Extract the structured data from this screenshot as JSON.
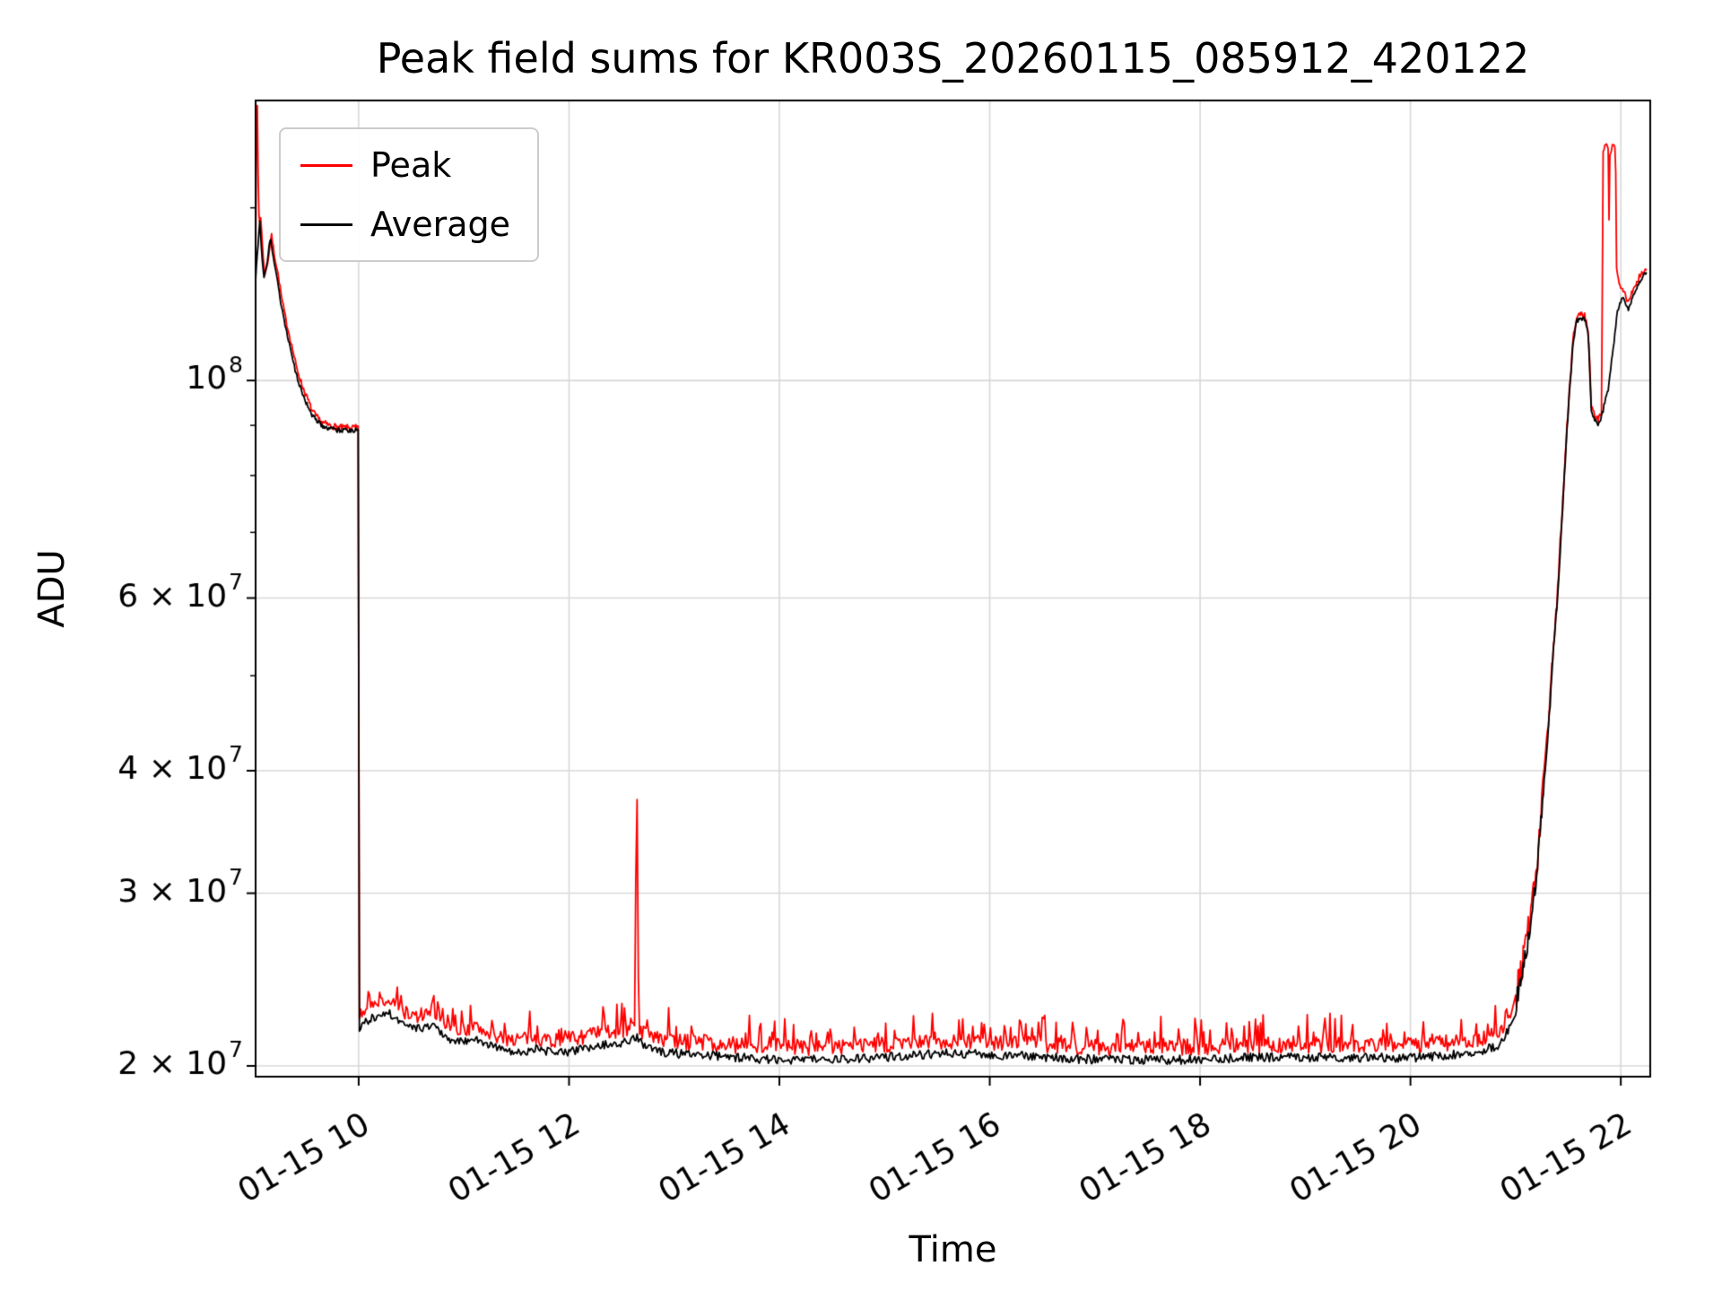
{
  "figure": {
    "title": "Peak field sums for KR003S_20260115_085912_420122"
  },
  "chart_data": {
    "type": "line",
    "title": "Peak field sums for KR003S_20260115_085912_420122",
    "xlabel": "Time",
    "ylabel": "ADU",
    "x_unit": "hour of 2026-01-15",
    "y_scale": "log",
    "x_range": [
      9.02,
      22.28
    ],
    "y_range": [
      19500000.0,
      193000000.0
    ],
    "grid": true,
    "grid_color": "#d9d9d9",
    "background": "#ffffff",
    "noise_seed": 7,
    "x_ticks": [
      {
        "v": 10,
        "label": "01-15 10"
      },
      {
        "v": 12,
        "label": "01-15 12"
      },
      {
        "v": 14,
        "label": "01-15 14"
      },
      {
        "v": 16,
        "label": "01-15 16"
      },
      {
        "v": 18,
        "label": "01-15 18"
      },
      {
        "v": 20,
        "label": "01-15 20"
      },
      {
        "v": 22,
        "label": "01-15 22"
      }
    ],
    "y_ticks": [
      {
        "v": 20000000.0,
        "base": "2 × 10",
        "exp": "7"
      },
      {
        "v": 30000000.0,
        "base": "3 × 10",
        "exp": "7"
      },
      {
        "v": 40000000.0,
        "base": "4 × 10",
        "exp": "7"
      },
      {
        "v": 60000000.0,
        "base": "6 × 10",
        "exp": "7"
      },
      {
        "v": 100000000.0,
        "base": "10",
        "exp": "8"
      }
    ],
    "y_minor_ticks": [
      50000000.0,
      70000000.0,
      80000000.0,
      90000000.0,
      150000000.0
    ],
    "legend": {
      "position": "upper-left",
      "entries": [
        {
          "label": "Peak",
          "color": "#ff0000"
        },
        {
          "label": "Average",
          "color": "#000000"
        }
      ]
    },
    "series": [
      {
        "name": "Peak",
        "color": "#ff0000",
        "linewidth": 1.8,
        "segments": [
          {
            "points": [
              [
                9.02,
                130000000.0
              ],
              [
                9.025,
                170000000.0
              ],
              [
                9.03,
                193000000.0
              ],
              [
                9.04,
                188000000.0
              ],
              [
                9.045,
                155000000.0
              ],
              [
                9.055,
                144000000.0
              ],
              [
                9.07,
                147000000.0
              ],
              [
                9.09,
                134000000.0
              ],
              [
                9.11,
                128000000.0
              ],
              [
                9.14,
                133000000.0
              ],
              [
                9.17,
                141000000.0
              ],
              [
                9.2,
                134000000.0
              ],
              [
                9.23,
                129000000.0
              ],
              [
                9.27,
                121000000.0
              ],
              [
                9.31,
                115000000.0
              ],
              [
                9.36,
                109000000.0
              ],
              [
                9.41,
                103000000.0
              ],
              [
                9.46,
                99000000.0
              ],
              [
                9.51,
                96000000.0
              ],
              [
                9.56,
                93000000.0
              ],
              [
                9.61,
                91500000.0
              ],
              [
                9.66,
                90500000.0
              ],
              [
                9.72,
                90000000.0
              ],
              [
                9.82,
                89500000.0
              ],
              [
                9.92,
                89500000.0
              ],
              [
                9.995,
                89500000.0
              ]
            ],
            "noise": {
              "amp": 700000.0,
              "step": 0.008
            }
          },
          {
            "points": [
              [
                9.995,
                89500000.0
              ],
              [
                10.0,
                22500000.0
              ],
              [
                10.05,
                22800000.0
              ],
              [
                10.1,
                23000000.0
              ],
              [
                10.2,
                23200000.0
              ],
              [
                10.3,
                23300000.0
              ],
              [
                10.4,
                22800000.0
              ],
              [
                10.5,
                22500000.0
              ],
              [
                10.6,
                22400000.0
              ],
              [
                10.7,
                22700000.0
              ],
              [
                10.8,
                22200000.0
              ],
              [
                10.9,
                21800000.0
              ],
              [
                11.0,
                21800000.0
              ],
              [
                11.1,
                21900000.0
              ],
              [
                11.2,
                21700000.0
              ],
              [
                11.35,
                21400000.0
              ],
              [
                11.5,
                21300000.0
              ],
              [
                11.7,
                21400000.0
              ],
              [
                11.9,
                21200000.0
              ],
              [
                12.1,
                21400000.0
              ],
              [
                12.3,
                21600000.0
              ],
              [
                12.5,
                21700000.0
              ],
              [
                12.6,
                22000000.0
              ],
              [
                12.63,
                22000000.0
              ],
              [
                12.638,
                37000000.0
              ],
              [
                12.652,
                37500000.0
              ],
              [
                12.66,
                22000000.0
              ],
              [
                12.7,
                21600000.0
              ],
              [
                12.85,
                21300000.0
              ],
              [
                13.0,
                21200000.0
              ],
              [
                13.3,
                21100000.0
              ],
              [
                13.6,
                21000000.0
              ],
              [
                14.0,
                20900000.0
              ],
              [
                14.5,
                20900000.0
              ],
              [
                15.0,
                21000000.0
              ],
              [
                15.5,
                21200000.0
              ],
              [
                15.8,
                21200000.0
              ],
              [
                16.2,
                21100000.0
              ],
              [
                16.6,
                21000000.0
              ],
              [
                17.0,
                20900000.0
              ],
              [
                17.5,
                20900000.0
              ],
              [
                18.0,
                20900000.0
              ],
              [
                18.5,
                21000000.0
              ],
              [
                19.0,
                21000000.0
              ],
              [
                19.5,
                21000000.0
              ],
              [
                20.0,
                21000000.0
              ],
              [
                20.3,
                21100000.0
              ],
              [
                20.6,
                21200000.0
              ],
              [
                20.85,
                21600000.0
              ],
              [
                20.95,
                22400000.0
              ]
            ],
            "noise": {
              "amp": 400000.0,
              "step": 0.012,
              "spike_prob": 0.18,
              "spike_amp": 1400000.0
            }
          },
          {
            "points": [
              [
                21.0,
                23500000.0
              ],
              [
                21.1,
                26500000.0
              ],
              [
                21.2,
                31500000.0
              ],
              [
                21.3,
                43000000.0
              ],
              [
                21.4,
                61000000.0
              ],
              [
                21.45,
                76000000.0
              ],
              [
                21.5,
                94000000.0
              ],
              [
                21.55,
                111000000.0
              ],
              [
                21.58,
                116000000.0
              ],
              [
                21.65,
                117000000.0
              ],
              [
                21.69,
                113000000.0
              ],
              [
                21.72,
                94000000.0
              ],
              [
                21.78,
                91000000.0
              ],
              [
                21.82,
                93000000.0
              ],
              [
                21.83,
                170000000.0
              ],
              [
                21.86,
                175000000.0
              ],
              [
                21.88,
                173000000.0
              ],
              [
                21.885,
                135000000.0
              ],
              [
                21.895,
                170000000.0
              ],
              [
                21.93,
                175000000.0
              ],
              [
                21.95,
                172000000.0
              ],
              [
                21.96,
                130000000.0
              ],
              [
                21.98,
                126000000.0
              ],
              [
                22.02,
                124000000.0
              ],
              [
                22.07,
                120000000.0
              ],
              [
                22.12,
                124000000.0
              ],
              [
                22.18,
                128000000.0
              ],
              [
                22.24,
                130000000.0
              ]
            ],
            "noise": {
              "amp": 900000.0,
              "step": 0.008
            }
          }
        ]
      },
      {
        "name": "Average",
        "color": "#000000",
        "linewidth": 1.8,
        "segments": [
          {
            "points": [
              [
                9.02,
                127000000.0
              ],
              [
                9.04,
                136000000.0
              ],
              [
                9.06,
                145000000.0
              ],
              [
                9.08,
                134000000.0
              ],
              [
                9.1,
                127000000.0
              ],
              [
                9.13,
                132000000.0
              ],
              [
                9.16,
                140000000.0
              ],
              [
                9.19,
                133000000.0
              ],
              [
                9.22,
                128000000.0
              ],
              [
                9.26,
                120000000.0
              ],
              [
                9.3,
                114000000.0
              ],
              [
                9.35,
                108000000.0
              ],
              [
                9.4,
                102000000.0
              ],
              [
                9.45,
                98000000.0
              ],
              [
                9.5,
                95000000.0
              ],
              [
                9.55,
                92500000.0
              ],
              [
                9.6,
                91000000.0
              ],
              [
                9.65,
                90000000.0
              ],
              [
                9.7,
                89500000.0
              ],
              [
                9.8,
                89000000.0
              ],
              [
                9.9,
                89000000.0
              ],
              [
                9.995,
                89000000.0
              ]
            ],
            "noise": {
              "amp": 500000.0,
              "step": 0.008
            }
          },
          {
            "points": [
              [
                9.995,
                89000000.0
              ],
              [
                10.0,
                21800000.0
              ],
              [
                10.05,
                22100000.0
              ],
              [
                10.1,
                22300000.0
              ],
              [
                10.2,
                22500000.0
              ],
              [
                10.3,
                22600000.0
              ],
              [
                10.4,
                22200000.0
              ],
              [
                10.5,
                21900000.0
              ],
              [
                10.6,
                21800000.0
              ],
              [
                10.7,
                22100000.0
              ],
              [
                10.8,
                21600000.0
              ],
              [
                10.9,
                21200000.0
              ],
              [
                11.0,
                21200000.0
              ],
              [
                11.1,
                21300000.0
              ],
              [
                11.2,
                21100000.0
              ],
              [
                11.35,
                20800000.0
              ],
              [
                11.5,
                20700000.0
              ],
              [
                11.7,
                20800000.0
              ],
              [
                11.9,
                20600000.0
              ],
              [
                12.1,
                20800000.0
              ],
              [
                12.3,
                21000000.0
              ],
              [
                12.5,
                21100000.0
              ],
              [
                12.6,
                21300000.0
              ],
              [
                12.65,
                21400000.0
              ],
              [
                12.7,
                21000000.0
              ],
              [
                12.85,
                20700000.0
              ],
              [
                13.0,
                20600000.0
              ],
              [
                13.3,
                20500000.0
              ],
              [
                13.6,
                20400000.0
              ],
              [
                14.0,
                20300000.0
              ],
              [
                14.5,
                20300000.0
              ],
              [
                15.0,
                20400000.0
              ],
              [
                15.5,
                20600000.0
              ],
              [
                15.8,
                20600000.0
              ],
              [
                16.2,
                20500000.0
              ],
              [
                16.6,
                20400000.0
              ],
              [
                17.0,
                20300000.0
              ],
              [
                17.5,
                20300000.0
              ],
              [
                18.0,
                20300000.0
              ],
              [
                18.5,
                20400000.0
              ],
              [
                19.0,
                20400000.0
              ],
              [
                19.5,
                20400000.0
              ],
              [
                20.0,
                20400000.0
              ],
              [
                20.3,
                20500000.0
              ],
              [
                20.6,
                20600000.0
              ],
              [
                20.85,
                21000000.0
              ],
              [
                20.95,
                22000000.0
              ]
            ],
            "noise": {
              "amp": 220000.0,
              "step": 0.012
            }
          },
          {
            "points": [
              [
                21.0,
                23000000.0
              ],
              [
                21.1,
                26000000.0
              ],
              [
                21.2,
                31000000.0
              ],
              [
                21.3,
                42000000.0
              ],
              [
                21.4,
                60000000.0
              ],
              [
                21.45,
                75000000.0
              ],
              [
                21.5,
                93000000.0
              ],
              [
                21.55,
                110000000.0
              ],
              [
                21.58,
                115000000.0
              ],
              [
                21.65,
                116000000.0
              ],
              [
                21.69,
                112000000.0
              ],
              [
                21.72,
                93000000.0
              ],
              [
                21.78,
                90000000.0
              ],
              [
                21.82,
                92000000.0
              ],
              [
                21.88,
                98000000.0
              ],
              [
                21.93,
                108000000.0
              ],
              [
                21.97,
                118000000.0
              ],
              [
                22.02,
                122000000.0
              ],
              [
                22.07,
                118000000.0
              ],
              [
                22.12,
                122000000.0
              ],
              [
                22.18,
                126000000.0
              ],
              [
                22.24,
                129000000.0
              ]
            ],
            "noise": {
              "amp": 600000.0,
              "step": 0.008
            }
          }
        ]
      }
    ]
  }
}
